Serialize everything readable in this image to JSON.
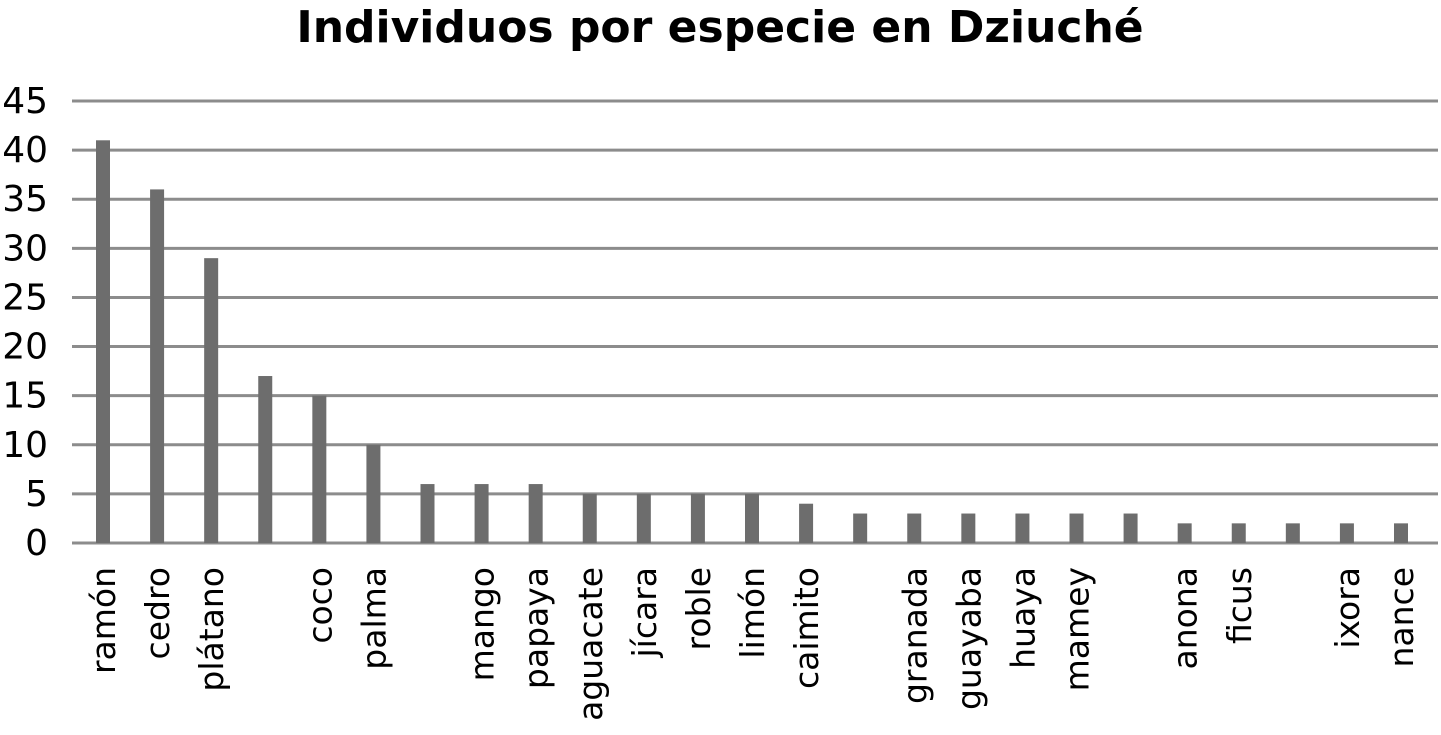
{
  "chart_data": {
    "type": "bar",
    "title": "Individuos por especie en Dziuché",
    "xlabel": "",
    "ylabel": "",
    "ylim": [
      0,
      45
    ],
    "yticks": [
      0,
      5,
      10,
      15,
      20,
      25,
      30,
      35,
      40,
      45
    ],
    "grid": true,
    "legend": "none",
    "bar_color": "#6d6d6d",
    "categories": [
      "ramón",
      "cedro",
      "plátano",
      "",
      "coco",
      "palma",
      "",
      "mango",
      "papaya",
      "aguacate",
      "jícara",
      "roble",
      "limón",
      "caimito",
      "",
      "granada",
      "guayaba",
      "huaya",
      "mamey",
      "",
      "anona",
      "ficus",
      "",
      "ixora",
      "nance"
    ],
    "values": [
      41,
      36,
      29,
      17,
      15,
      10,
      6,
      6,
      6,
      5,
      5,
      5,
      5,
      4,
      3,
      3,
      3,
      3,
      3,
      3,
      2,
      2,
      2,
      2,
      2
    ]
  }
}
